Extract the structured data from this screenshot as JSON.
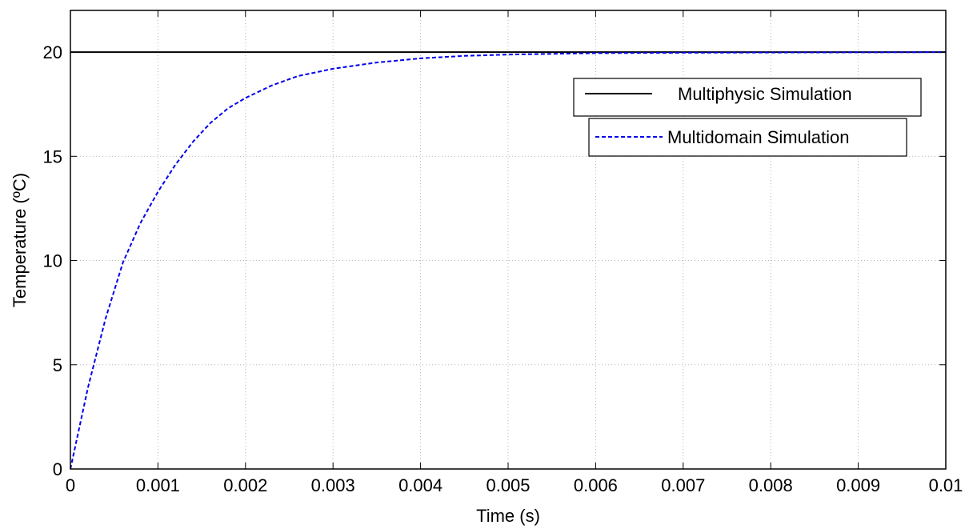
{
  "chart_data": {
    "type": "line",
    "title": "",
    "xlabel": "Time (s)",
    "ylabel": "Temperature (ºC)",
    "xlim": [
      0,
      0.01
    ],
    "ylim": [
      0,
      22
    ],
    "grid": true,
    "legend_placement": "top-right",
    "x_ticks": [
      0,
      0.001,
      0.002,
      0.003,
      0.004,
      0.005,
      0.006,
      0.007,
      0.008,
      0.009,
      0.01
    ],
    "x_tick_labels": [
      "0",
      "0.001",
      "0.002",
      "0.003",
      "0.004",
      "0.005",
      "0.006",
      "0.007",
      "0.008",
      "0.009",
      "0.01"
    ],
    "y_ticks": [
      0,
      5,
      10,
      15,
      20
    ],
    "y_tick_labels": [
      "0",
      "5",
      "10",
      "15",
      "20"
    ],
    "series": [
      {
        "name": "Multiphysic Simulation",
        "color": "#000000",
        "line_style": "solid",
        "x": [
          0,
          0.01
        ],
        "y": [
          20,
          20
        ]
      },
      {
        "name": "Multidomain Simulation",
        "color": "#0000ee",
        "line_style": "dashed",
        "x": [
          0,
          0.0002,
          0.0004,
          0.0006,
          0.0008,
          0.001,
          0.0012,
          0.0014,
          0.0016,
          0.0018,
          0.002,
          0.0023,
          0.0026,
          0.003,
          0.0035,
          0.004,
          0.0045,
          0.005,
          0.006,
          0.007,
          0.008,
          0.009,
          0.01
        ],
        "y": [
          0,
          3.9,
          7.2,
          9.9,
          11.8,
          13.3,
          14.6,
          15.7,
          16.6,
          17.3,
          17.8,
          18.4,
          18.85,
          19.2,
          19.5,
          19.7,
          19.82,
          19.88,
          19.95,
          19.97,
          19.98,
          19.99,
          20
        ]
      }
    ]
  }
}
